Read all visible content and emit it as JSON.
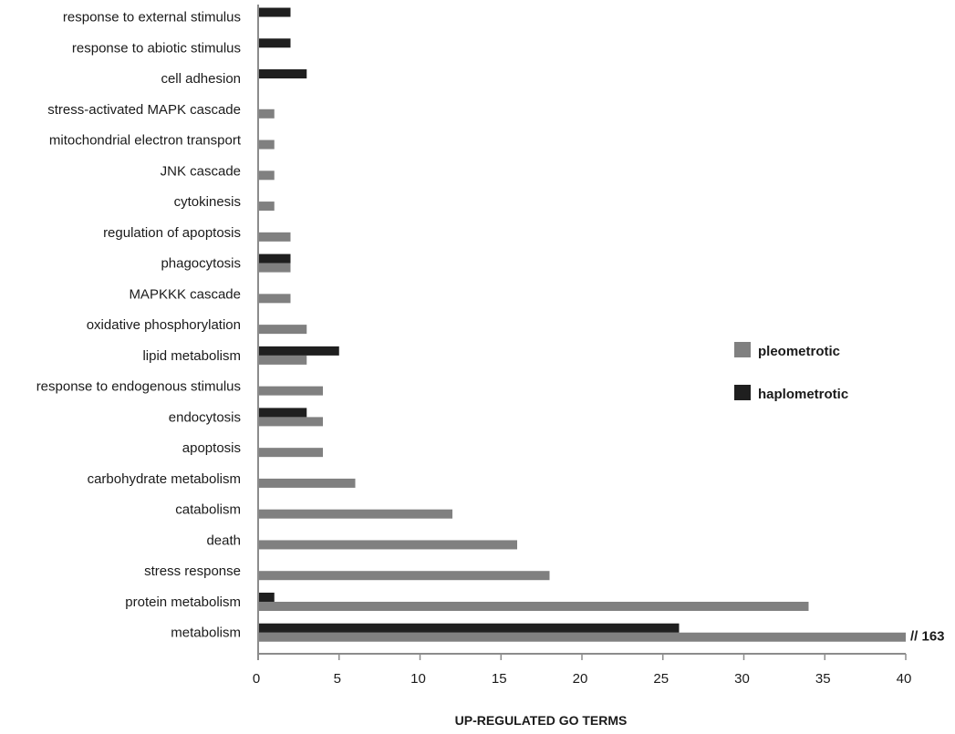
{
  "chart_data": {
    "type": "bar",
    "orientation": "horizontal",
    "categories": [
      "response to external stimulus",
      "response to abiotic stimulus",
      "cell adhesion",
      "stress-activated MAPK cascade",
      "mitochondrial electron transport",
      "JNK cascade",
      "cytokinesis",
      "regulation of apoptosis",
      "phagocytosis",
      "MAPKKK cascade",
      "oxidative phosphorylation",
      "lipid metabolism",
      "response to endogenous stimulus",
      "endocytosis",
      "apoptosis",
      "carbohydrate metabolism",
      "catabolism",
      "death",
      "stress response",
      "protein metabolism",
      "metabolism"
    ],
    "series": [
      {
        "name": "pleometrotic",
        "color": "#808080",
        "values": [
          0,
          0,
          0,
          1,
          1,
          1,
          1,
          2,
          2,
          2,
          3,
          3,
          4,
          4,
          4,
          6,
          12,
          16,
          18,
          34,
          163
        ]
      },
      {
        "name": "haplometrotic",
        "color": "#1f1f1f",
        "values": [
          2,
          2,
          3,
          0,
          0,
          0,
          0,
          0,
          2,
          0,
          0,
          5,
          0,
          3,
          0,
          0,
          0,
          0,
          0,
          1,
          26
        ]
      }
    ],
    "xlabel": "UP-REGULATED GO TERMS",
    "ylabel": "",
    "title": "",
    "xlim": [
      0,
      40
    ],
    "xticks": [
      0,
      5,
      10,
      15,
      20,
      25,
      30,
      35,
      40
    ],
    "axis_break": {
      "category": "metabolism",
      "series": "pleometrotic",
      "label": "// 163"
    },
    "grid": false,
    "legend_position": "right"
  }
}
